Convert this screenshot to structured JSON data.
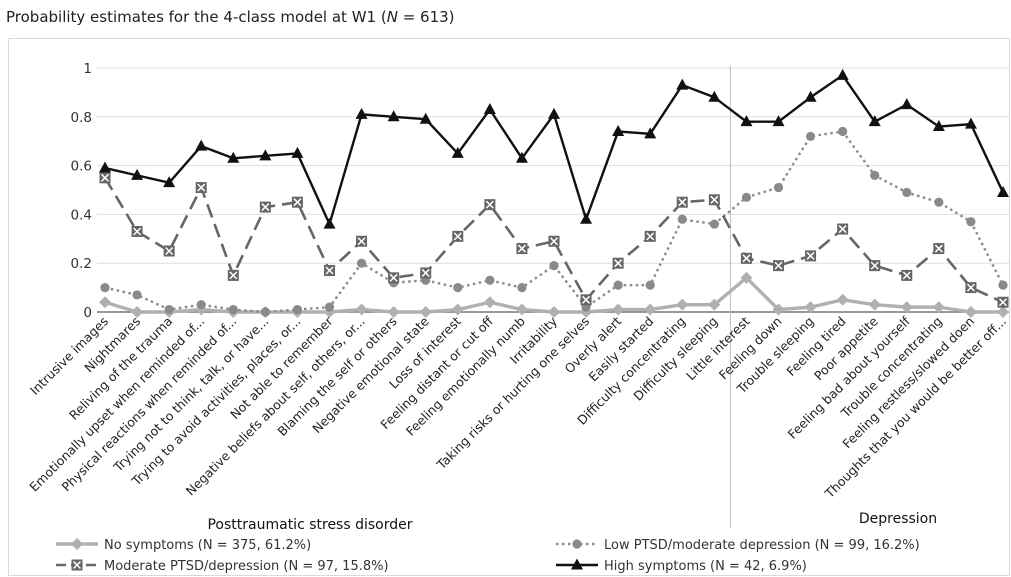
{
  "chart_data": {
    "type": "line",
    "title_prefix": "Probability estimates for the 4-class model at W1 (",
    "title_n_symbol": "N",
    "title_suffix": " = 613)",
    "ylim": [
      0,
      1
    ],
    "yticks": [
      {
        "value": 0,
        "label": "0"
      },
      {
        "value": 0.2,
        "label": "0.2"
      },
      {
        "value": 0.4,
        "label": "0.4"
      },
      {
        "value": 0.6,
        "label": "0.6"
      },
      {
        "value": 0.8,
        "label": "0.8"
      },
      {
        "value": 1,
        "label": "1"
      }
    ],
    "grid": true,
    "categories": [
      "Intrusive images",
      "Nightmares",
      "Reliving of the trauma",
      "Emotionally upset when reminded of...",
      "Physical reactions when reminded of...",
      "Trying not to think, talk, or have...",
      "Trying to avoid activities, places, or...",
      "Not able to remember",
      "Negative beliefs about self, others, or...",
      "Blaming the self or others",
      "Negative emotional state",
      "Loss of interest",
      "Feeling distant or cut off",
      "Feeling emotionally numb",
      "Irritability",
      "Taking risks or hurting one selves",
      "Overly alert",
      "Easily started",
      "Difficulty concentrating",
      "Difficulty sleeping",
      "Little interest",
      "Feeling down",
      "Trouble sleeping",
      "Feeling tired",
      "Poor appetite",
      "Feeling bad about yourself",
      "Trouble concentrating",
      "Feeling restless/slowed doen",
      "Thoughts that you would be better off..."
    ],
    "groups": [
      {
        "label": "Posttraumatic stress disorder",
        "start": 0,
        "end": 19
      },
      {
        "label": "Depression",
        "start": 20,
        "end": 28
      }
    ],
    "series": [
      {
        "name": "No symptoms (N = 375, 61.2%)",
        "color": "#b0b0b0",
        "marker": "diamond",
        "dash": "solid",
        "values": [
          0.04,
          0.0,
          0.0,
          0.01,
          0.0,
          0.0,
          0.0,
          0.0,
          0.01,
          0.0,
          0.0,
          0.01,
          0.04,
          0.01,
          0.0,
          0.0,
          0.01,
          0.01,
          0.03,
          0.03,
          0.14,
          0.01,
          0.02,
          0.05,
          0.03,
          0.02,
          0.02,
          0.0,
          0.0
        ]
      },
      {
        "name": "Low PTSD/moderate depression (N = 99, 16.2%)",
        "color": "#8a8a8a",
        "marker": "circle",
        "dash": "dotted",
        "values": [
          0.1,
          0.07,
          0.01,
          0.03,
          0.01,
          0.0,
          0.01,
          0.02,
          0.2,
          0.12,
          0.13,
          0.1,
          0.13,
          0.1,
          0.19,
          0.02,
          0.11,
          0.11,
          0.38,
          0.36,
          0.47,
          0.51,
          0.72,
          0.74,
          0.56,
          0.49,
          0.45,
          0.37,
          0.11
        ]
      },
      {
        "name": "Moderate PTSD/depression (N = 97, 15.8%)",
        "color": "#666666",
        "marker": "x-square",
        "dash": "dashed",
        "values": [
          0.55,
          0.33,
          0.25,
          0.51,
          0.15,
          0.43,
          0.45,
          0.17,
          0.29,
          0.14,
          0.16,
          0.31,
          0.44,
          0.26,
          0.29,
          0.05,
          0.2,
          0.31,
          0.45,
          0.46,
          0.22,
          0.19,
          0.23,
          0.34,
          0.19,
          0.15,
          0.26,
          0.1,
          0.04
        ]
      },
      {
        "name": "High symptoms (N = 42, 6.9%)",
        "color": "#111111",
        "marker": "triangle",
        "dash": "solid",
        "values": [
          0.59,
          0.56,
          0.53,
          0.68,
          0.63,
          0.64,
          0.65,
          0.36,
          0.81,
          0.8,
          0.79,
          0.65,
          0.83,
          0.63,
          0.81,
          0.38,
          0.74,
          0.73,
          0.93,
          0.88,
          0.78,
          0.78,
          0.88,
          0.97,
          0.78,
          0.85,
          0.76,
          0.77,
          0.49
        ]
      }
    ]
  }
}
